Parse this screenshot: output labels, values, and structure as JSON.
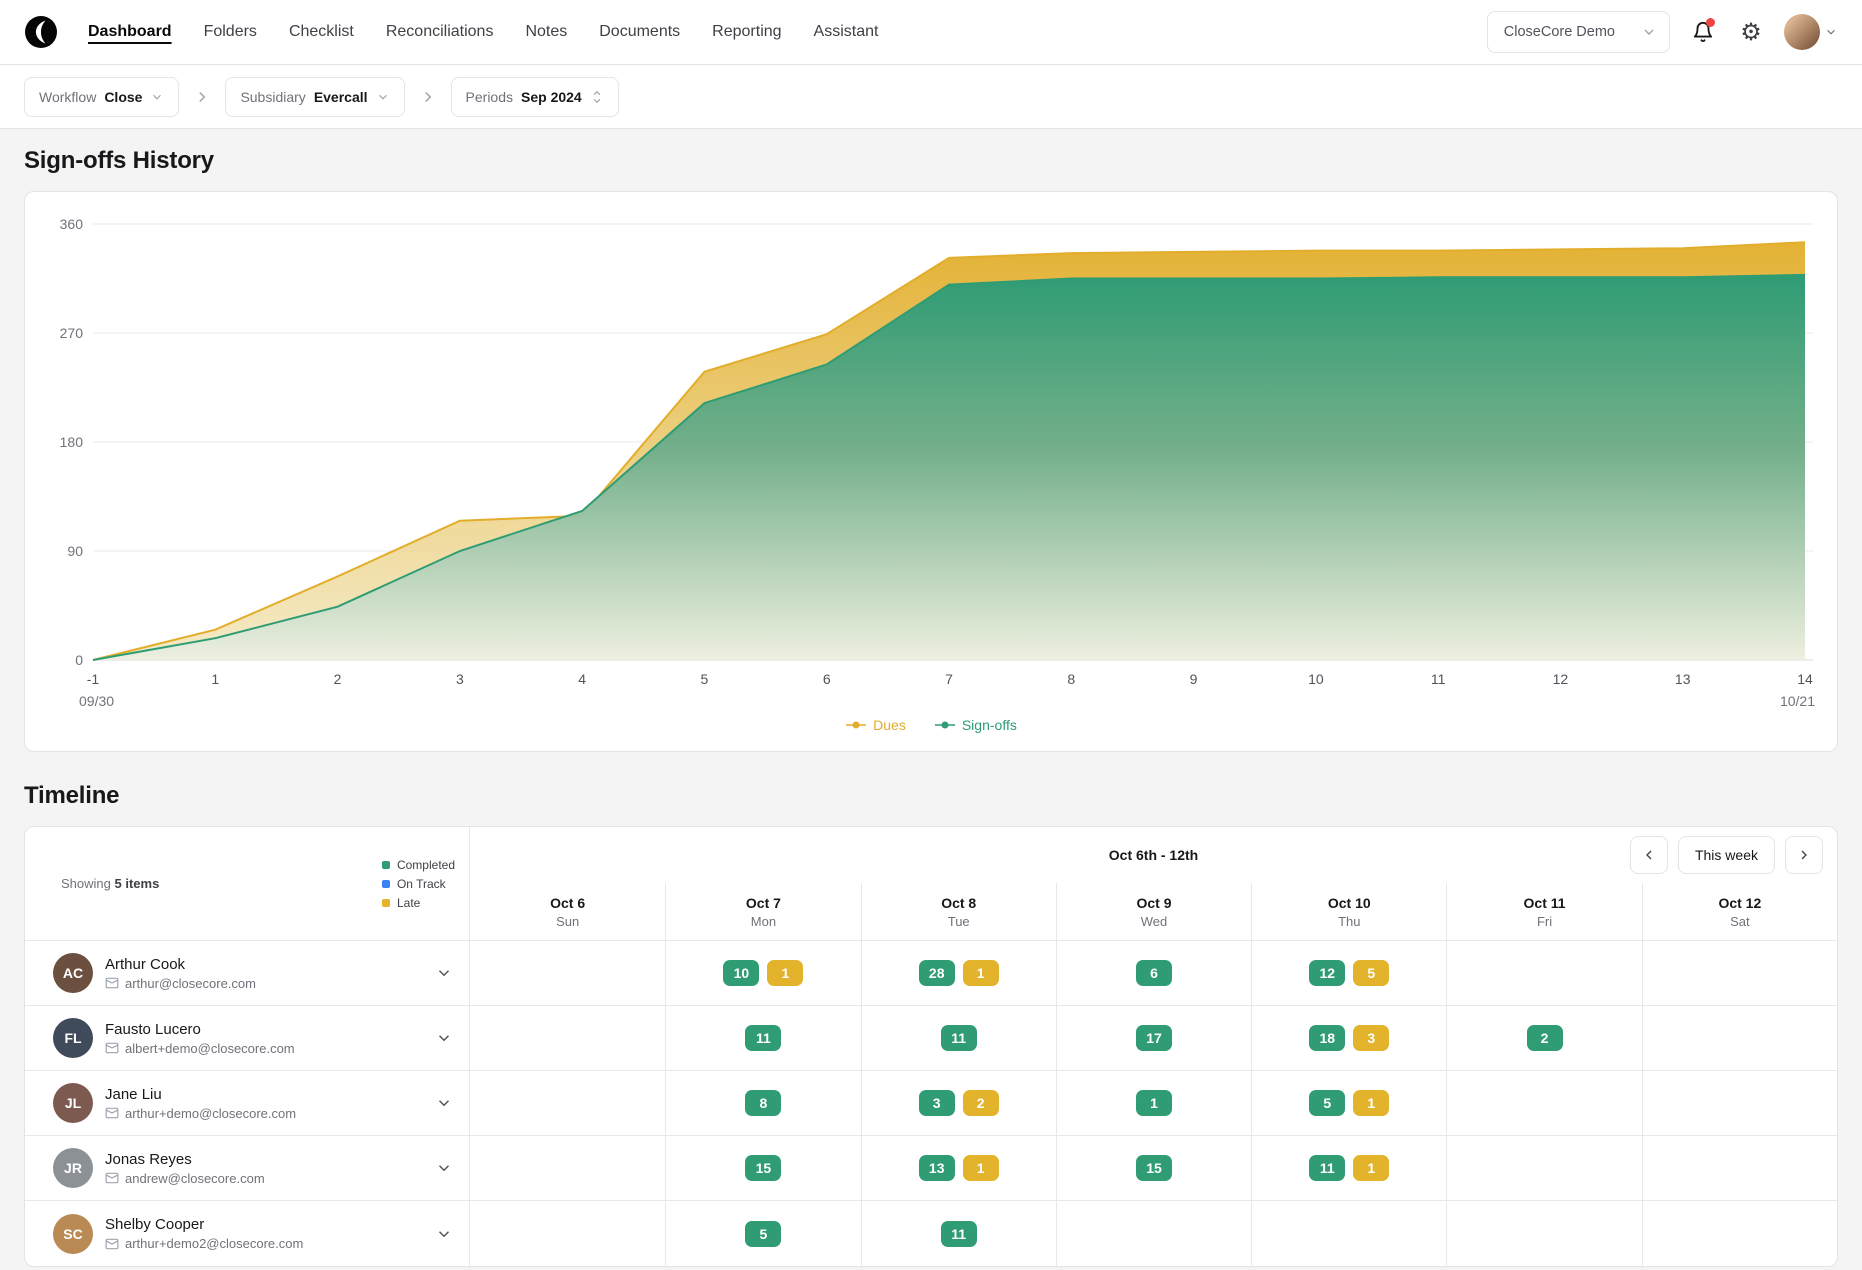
{
  "nav": {
    "org": "CloseCore Demo",
    "items": [
      {
        "label": "Dashboard",
        "active": true
      },
      {
        "label": "Folders",
        "active": false
      },
      {
        "label": "Checklist",
        "active": false
      },
      {
        "label": "Reconciliations",
        "active": false
      },
      {
        "label": "Notes",
        "active": false
      },
      {
        "label": "Documents",
        "active": false
      },
      {
        "label": "Reporting",
        "active": false
      },
      {
        "label": "Assistant",
        "active": false
      }
    ]
  },
  "breadcrumb": {
    "workflow_label": "Workflow",
    "workflow_value": "Close",
    "subsidiary_label": "Subsidiary",
    "subsidiary_value": "Evercall",
    "periods_label": "Periods",
    "periods_value": "Sep 2024"
  },
  "signoffs_title": "Sign-offs History",
  "chart_data": {
    "type": "area",
    "title": "Sign-offs History",
    "categories": [
      "-1",
      "1",
      "2",
      "3",
      "4",
      "5",
      "6",
      "7",
      "8",
      "9",
      "10",
      "11",
      "12",
      "13",
      "14"
    ],
    "series": [
      {
        "name": "Dues",
        "color": "#E2AE2A",
        "values": [
          0,
          25,
          69,
          115,
          119,
          238,
          269,
          332,
          336,
          337,
          338,
          338,
          339,
          340,
          345
        ]
      },
      {
        "name": "Sign-offs",
        "color": "#2F9C74",
        "values": [
          0,
          18,
          44,
          90,
          123,
          212,
          244,
          310,
          315,
          315,
          315,
          316,
          316,
          316,
          318
        ]
      }
    ],
    "ylim": [
      0,
      360
    ],
    "yticks": [
      0,
      90,
      180,
      270,
      360
    ],
    "x_edge_labels": {
      "start": "09/30",
      "end": "10/21"
    },
    "grid": "horizontal",
    "legend_position": "bottom"
  },
  "timeline": {
    "title": "Timeline",
    "showing_label": "Showing",
    "showing_value": "5 items",
    "legend": [
      {
        "label": "Completed",
        "color": "#2F9C74"
      },
      {
        "label": "On Track",
        "color": "#3B82F6"
      },
      {
        "label": "Late",
        "color": "#E3B32B"
      }
    ],
    "week_range_label": "Oct 6th - 12th",
    "this_week_label": "This week",
    "status_colors": {
      "completed": "#2F9C74",
      "on_track": "#3B82F6",
      "late": "#E3B32B"
    },
    "days": [
      {
        "date": "Oct 6",
        "weekday": "Sun"
      },
      {
        "date": "Oct 7",
        "weekday": "Mon"
      },
      {
        "date": "Oct 8",
        "weekday": "Tue"
      },
      {
        "date": "Oct 9",
        "weekday": "Wed"
      },
      {
        "date": "Oct 10",
        "weekday": "Thu"
      },
      {
        "date": "Oct 11",
        "weekday": "Fri"
      },
      {
        "date": "Oct 12",
        "weekday": "Sat"
      }
    ],
    "members": [
      {
        "name": "Arthur Cook",
        "email": "arthur@closecore.com",
        "initials": "AC",
        "avatar_color": "#6b4f3f",
        "cells": [
          [],
          [
            {
              "value": 10,
              "status": "completed"
            },
            {
              "value": 1,
              "status": "late"
            }
          ],
          [
            {
              "value": 28,
              "status": "completed"
            },
            {
              "value": 1,
              "status": "late"
            }
          ],
          [
            {
              "value": 6,
              "status": "completed"
            }
          ],
          [
            {
              "value": 12,
              "status": "completed"
            },
            {
              "value": 5,
              "status": "late"
            }
          ],
          [],
          []
        ]
      },
      {
        "name": "Fausto Lucero",
        "email": "albert+demo@closecore.com",
        "initials": "FL",
        "avatar_color": "#3f4a5a",
        "cells": [
          [],
          [
            {
              "value": 11,
              "status": "completed"
            }
          ],
          [
            {
              "value": 11,
              "status": "completed"
            }
          ],
          [
            {
              "value": 17,
              "status": "completed"
            }
          ],
          [
            {
              "value": 18,
              "status": "completed"
            },
            {
              "value": 3,
              "status": "late"
            }
          ],
          [
            {
              "value": 2,
              "status": "completed"
            }
          ],
          []
        ]
      },
      {
        "name": "Jane Liu",
        "email": "arthur+demo@closecore.com",
        "initials": "JL",
        "avatar_color": "#7d5a50",
        "cells": [
          [],
          [
            {
              "value": 8,
              "status": "completed"
            }
          ],
          [
            {
              "value": 3,
              "status": "completed"
            },
            {
              "value": 2,
              "status": "late"
            }
          ],
          [
            {
              "value": 1,
              "status": "completed"
            }
          ],
          [
            {
              "value": 5,
              "status": "completed"
            },
            {
              "value": 1,
              "status": "late"
            }
          ],
          [],
          []
        ]
      },
      {
        "name": "Jonas Reyes",
        "email": "andrew@closecore.com",
        "initials": "JR",
        "avatar_color": "#8c9196",
        "cells": [
          [],
          [
            {
              "value": 15,
              "status": "completed"
            }
          ],
          [
            {
              "value": 13,
              "status": "completed"
            },
            {
              "value": 1,
              "status": "late"
            }
          ],
          [
            {
              "value": 15,
              "status": "completed"
            }
          ],
          [
            {
              "value": 11,
              "status": "completed"
            },
            {
              "value": 1,
              "status": "late"
            }
          ],
          [],
          []
        ]
      },
      {
        "name": "Shelby Cooper",
        "email": "arthur+demo2@closecore.com",
        "initials": "SC",
        "avatar_color": "#b98a54",
        "cells": [
          [],
          [
            {
              "value": 5,
              "status": "completed"
            }
          ],
          [
            {
              "value": 11,
              "status": "completed"
            }
          ],
          [],
          [],
          [],
          []
        ]
      }
    ]
  }
}
